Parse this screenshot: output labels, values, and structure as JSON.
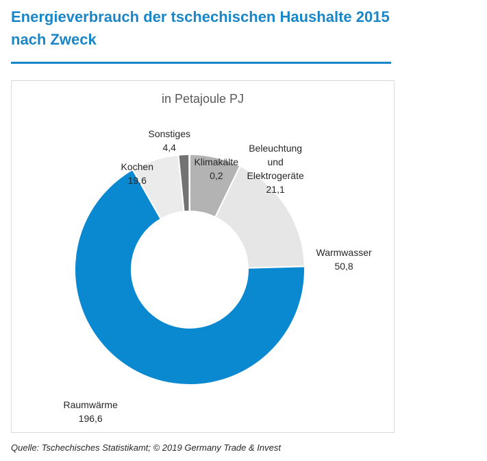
{
  "title_line1": "Energieverbrauch der tschechischen Haushalte 2015",
  "title_line2": "nach Zweck",
  "source": "Quelle: Tschechisches Statistikamt; © 2019  Germany Trade & Invest",
  "chart_data": {
    "type": "pie",
    "subtitle": "in Petajoule PJ",
    "donut": true,
    "slices": [
      {
        "label": "Beleuchtung und Elektrogeräte",
        "label_lines": [
          "Beleuchtung",
          "und",
          "Elektrogeräte"
        ],
        "value": 21.1,
        "value_text": "21,1",
        "color": "#b3b3b3"
      },
      {
        "label": "Warmwasser",
        "label_lines": [
          "Warmwasser"
        ],
        "value": 50.8,
        "value_text": "50,8",
        "color": "#e6e6e6"
      },
      {
        "label": "Raumwärme",
        "label_lines": [
          "Raumwärme"
        ],
        "value": 196.6,
        "value_text": "196,6",
        "color": "#0a88d0"
      },
      {
        "label": "Kochen",
        "label_lines": [
          "Kochen"
        ],
        "value": 19.6,
        "value_text": "19,6",
        "color": "#ebebeb"
      },
      {
        "label": "Sonstiges",
        "label_lines": [
          "Sonstiges"
        ],
        "value": 4.4,
        "value_text": "4,4",
        "color": "#737373"
      },
      {
        "label": "Klimakälte",
        "label_lines": [
          "Klimakälte"
        ],
        "value": 0.2,
        "value_text": "0,2",
        "color": "#d9d9d9"
      }
    ]
  }
}
